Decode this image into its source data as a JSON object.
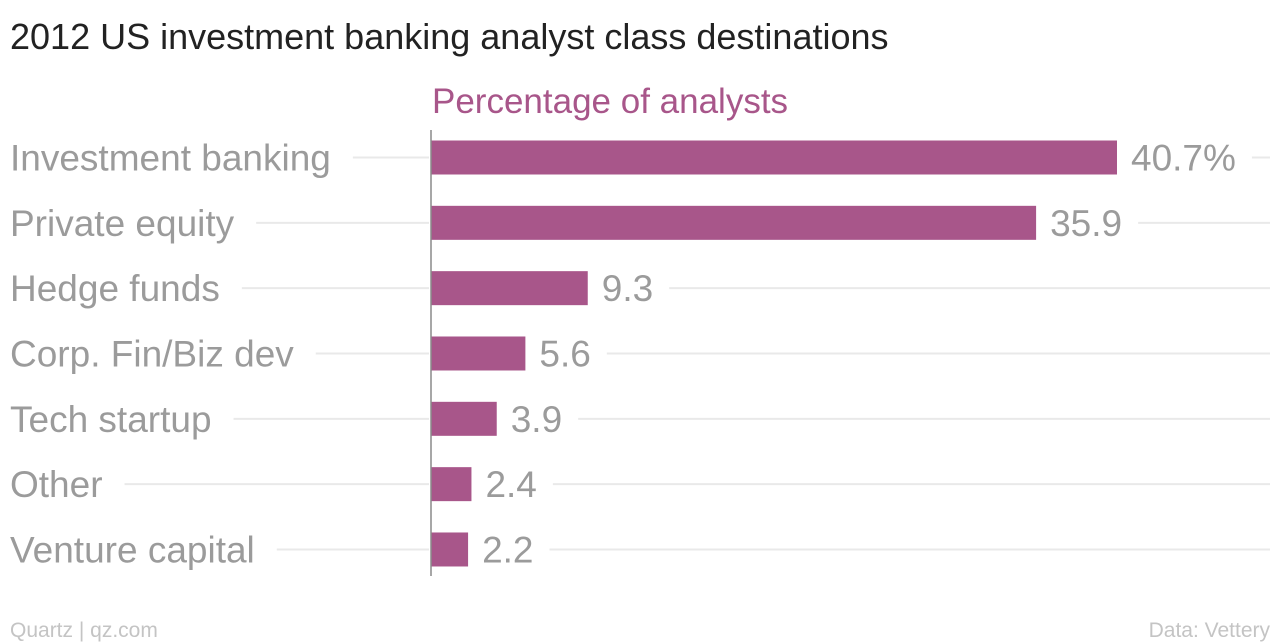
{
  "chart_data": {
    "type": "bar",
    "orientation": "horizontal",
    "title": "2012 US investment banking analyst class destinations",
    "series": [
      {
        "name": "Percentage of analysts",
        "values": [
          40.7,
          35.9,
          9.3,
          5.6,
          3.9,
          2.4,
          2.2
        ],
        "value_labels": [
          "40.7%",
          "35.9",
          "9.3",
          "5.6",
          "3.9",
          "2.4",
          "2.2"
        ],
        "color": "#a8568a"
      }
    ],
    "categories": [
      "Investment banking",
      "Private equity",
      "Hedge funds",
      "Corp. Fin/Biz dev",
      "Tech startup",
      "Other",
      "Venture capital"
    ],
    "xlim": [
      0,
      40.7
    ],
    "grid": true,
    "legend": "none"
  },
  "footer": {
    "source_left": "Quartz | qz.com",
    "source_right": "Data: Vettery"
  },
  "colors": {
    "bar": "#a8568a",
    "title": "#222222",
    "label": "#9b9b9b",
    "grid": "#e9e9e9",
    "footer": "#c4c4c4"
  }
}
